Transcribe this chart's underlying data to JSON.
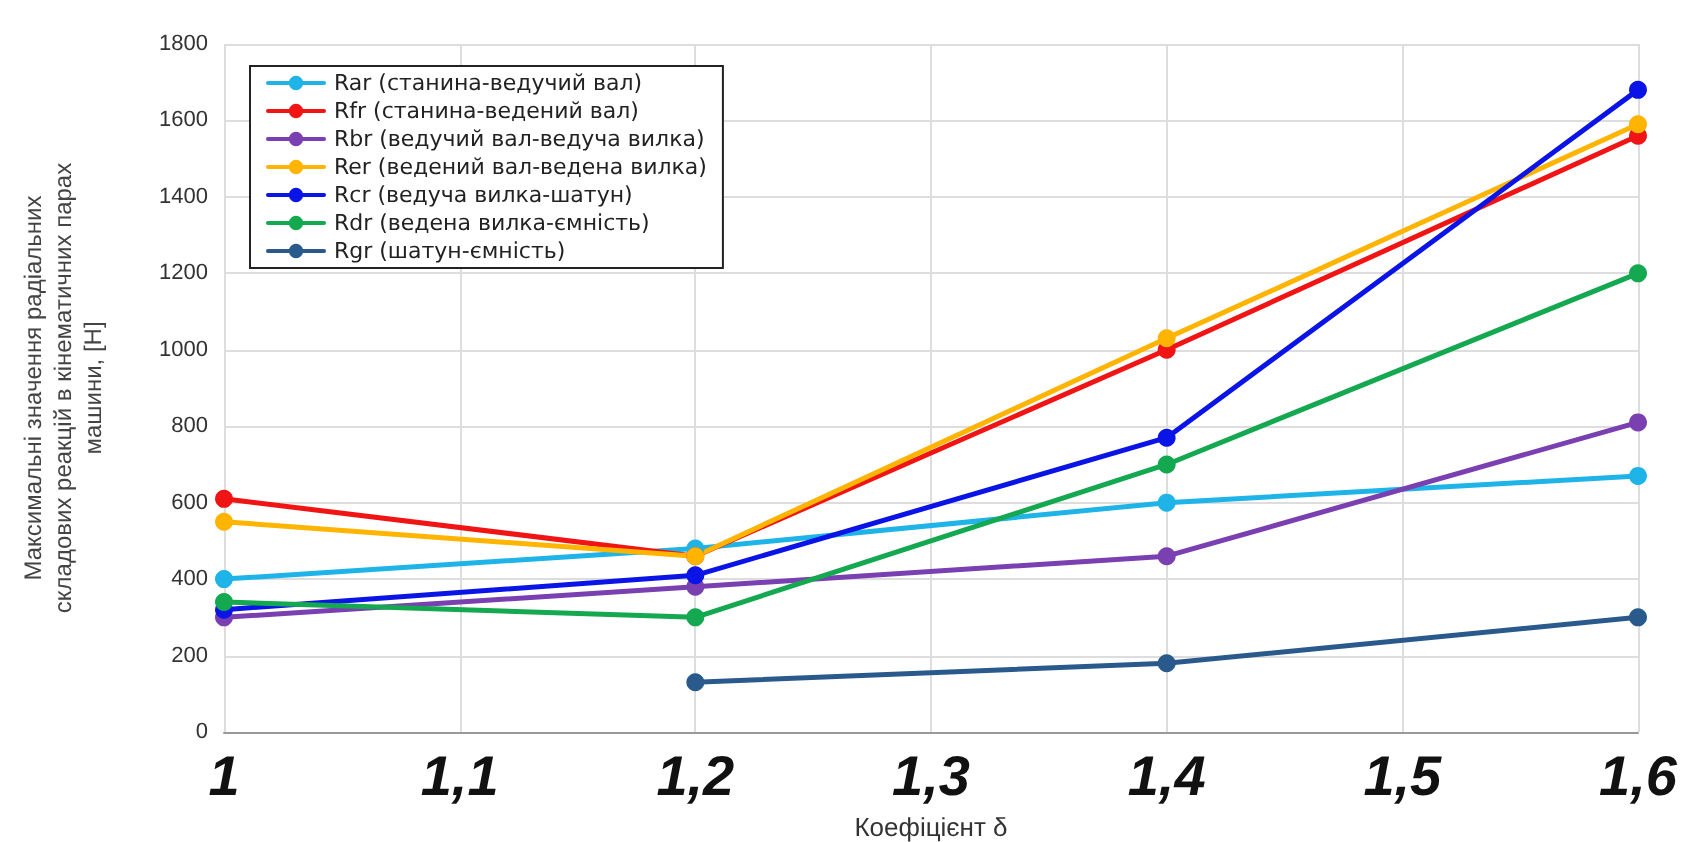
{
  "chart_data": {
    "type": "line",
    "xlabel": "Коефіцієнт δ",
    "ylabel": "Максимальні значення радіальних складових реакцій в кінематичних парах машини, [Н]",
    "x": [
      1,
      1.2,
      1.4,
      1.6
    ],
    "series": [
      {
        "name": "Rar (станина-ведучий вал)",
        "color": "#1eb4e8",
        "values": [
          400,
          480,
          600,
          670
        ]
      },
      {
        "name": "Rfr (станина-ведений вал)",
        "color": "#f01414",
        "values": [
          610,
          460,
          1000,
          1560
        ]
      },
      {
        "name": "Rbr (ведучий вал-ведуча вилка)",
        "color": "#7a3fb0",
        "values": [
          300,
          380,
          460,
          810
        ]
      },
      {
        "name": "Rer (ведений вал-ведена вилка)",
        "color": "#ffb400",
        "values": [
          550,
          460,
          1030,
          1590
        ]
      },
      {
        "name": "Rcr (ведуча вилка-шатун)",
        "color": "#0a14e6",
        "values": [
          320,
          410,
          770,
          1680
        ]
      },
      {
        "name": "Rdr (ведена вилка-ємність)",
        "color": "#14a850",
        "values": [
          340,
          300,
          700,
          1200
        ]
      },
      {
        "name": "Rgr (шатун-ємність)",
        "color": "#2a5a8c",
        "values": [
          null,
          130,
          180,
          300
        ]
      }
    ],
    "xlim": [
      1,
      1.6
    ],
    "xticks": [
      {
        "value": 1,
        "label": "1"
      },
      {
        "value": 1.1,
        "label": "1,1"
      },
      {
        "value": 1.2,
        "label": "1,2"
      },
      {
        "value": 1.3,
        "label": "1,3"
      },
      {
        "value": 1.4,
        "label": "1,4"
      },
      {
        "value": 1.5,
        "label": "1,5"
      },
      {
        "value": 1.6,
        "label": "1,6"
      }
    ],
    "ylim": [
      0,
      1800
    ],
    "yticks": [
      0,
      200,
      400,
      600,
      800,
      1000,
      1200,
      1400,
      1600,
      1800
    ],
    "grid": true,
    "legend": "top left",
    "marker": "circle",
    "line_style": "solid"
  }
}
